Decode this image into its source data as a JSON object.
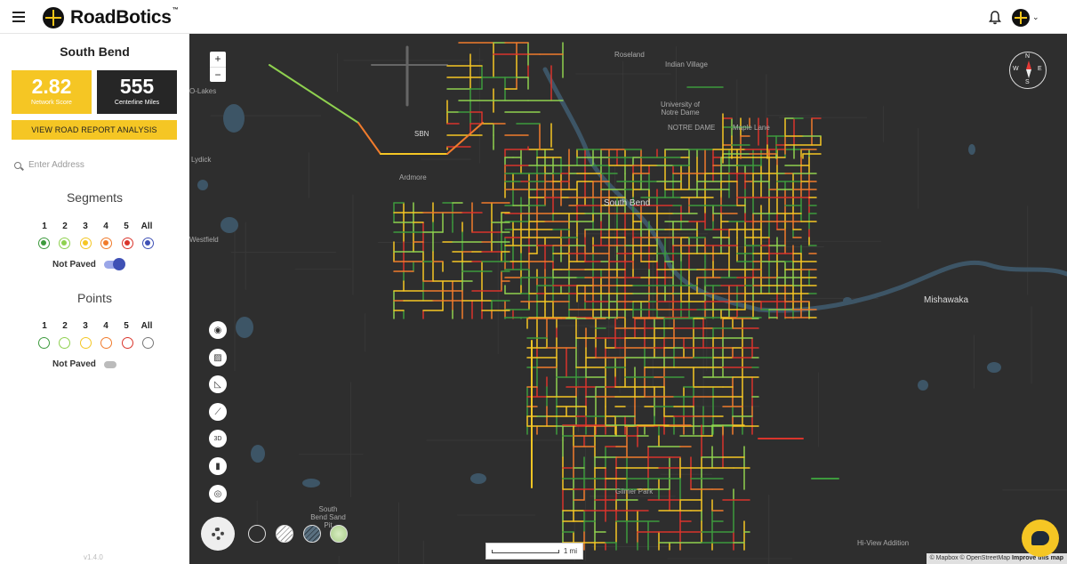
{
  "header": {
    "brand": "RoadBotics",
    "brand_tm": "™",
    "menu_icon": "hamburger-menu-icon",
    "notification_icon": "bell-icon",
    "account_icon": "account-globe-icon",
    "account_chevron": "⌄"
  },
  "sidebar": {
    "city": "South Bend",
    "network_score": {
      "value": "2.82",
      "label": "Network Score"
    },
    "centerline": {
      "value": "555",
      "label": "Centerline Miles"
    },
    "report_button": "VIEW ROAD REPORT ANALYSIS",
    "search": {
      "placeholder": "Enter Address",
      "icon": "search-icon"
    },
    "segments": {
      "title": "Segments",
      "levels": [
        "1",
        "2",
        "3",
        "4",
        "5",
        "All"
      ],
      "not_paved_label": "Not Paved",
      "not_paved_on": true
    },
    "points": {
      "title": "Points",
      "levels": [
        "1",
        "2",
        "3",
        "4",
        "5",
        "All"
      ],
      "not_paved_label": "Not Paved",
      "not_paved_on": false
    },
    "version": "v1.4.0"
  },
  "colors": {
    "level1": "#3d9a3d",
    "level2": "#8fd14f",
    "level3": "#f5c624",
    "level4": "#f07b2c",
    "level5": "#d9342b",
    "all": "#3f51b5",
    "map_bg": "#2e2e2e",
    "water": "#3d5566"
  },
  "map": {
    "zoom_in": "+",
    "zoom_out": "−",
    "compass": {
      "n": "N",
      "s": "S",
      "e": "E",
      "w": "W"
    },
    "labels": [
      "Roseland",
      "Indian Village",
      "University of Notre Dame",
      "NOTRE DAME",
      "Maple Lane",
      "South Bend",
      "Mishawaka",
      "Ardmore",
      "SBN",
      "Lydick",
      "Westfield",
      "Gilmer Park",
      "South Bend Sand Pit",
      "Hi-View Addition",
      "O-Lakes"
    ],
    "tools": [
      "camera-icon",
      "image-layer-icon",
      "measure-angle-icon",
      "ruler-icon",
      "3d-view-icon",
      "trash-icon",
      "locate-icon"
    ],
    "scale_text": "1 mi",
    "attribution_mapbox": "© Mapbox",
    "attribution_osm": "© OpenStreetMap",
    "attribution_improve": "Improve this map"
  }
}
